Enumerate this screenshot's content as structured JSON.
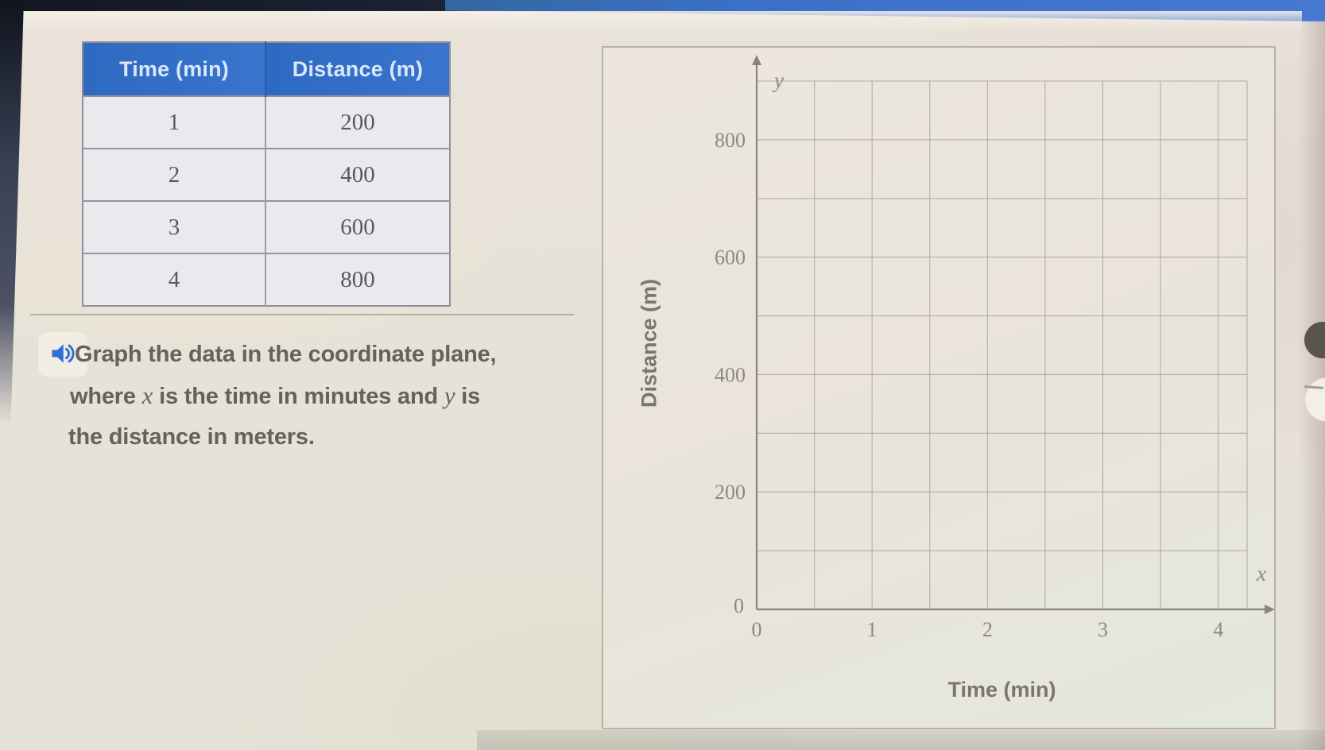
{
  "page": {
    "table": {
      "col_headers": [
        "Time (min)",
        "Distance (m)"
      ],
      "rows": [
        {
          "time": "1",
          "distance": "200"
        },
        {
          "time": "2",
          "distance": "400"
        },
        {
          "time": "3",
          "distance": "600"
        },
        {
          "time": "4",
          "distance": "800"
        }
      ]
    },
    "instruction": {
      "icon": "speaker-audio-icon",
      "line1": "Graph the data in the coordinate plane,",
      "line2_parts": {
        "t1": "where ",
        "x": "x",
        "t2": " is the time in minutes and ",
        "y": "y",
        "t3": " is"
      },
      "line3": "the distance in meters."
    }
  },
  "chart_data": {
    "type": "scatter",
    "title": "",
    "xlabel": "Time (min)",
    "ylabel": "Distance (m)",
    "x_axis_letter": "x",
    "y_axis_letter": "y",
    "xlim": [
      0,
      4.25
    ],
    "ylim": [
      0,
      900
    ],
    "x_ticks": [
      0,
      1,
      2,
      3,
      4
    ],
    "y_ticks": [
      0,
      200,
      400,
      600,
      800
    ],
    "x_grid_step": 0.5,
    "y_grid_step": 100,
    "grid": true,
    "legend": false,
    "plotted_points": [],
    "data_to_plot": {
      "x": [
        1,
        2,
        3,
        4
      ],
      "y": [
        200,
        400,
        600,
        800
      ]
    }
  },
  "colors": {
    "table_header_blue": "#2f6cc3",
    "audio_icon_blue": "#2f6fd6",
    "page_beige": "#e8e2d8",
    "grid_gray": "#aaa49a",
    "axis_gray": "#8a8478"
  }
}
